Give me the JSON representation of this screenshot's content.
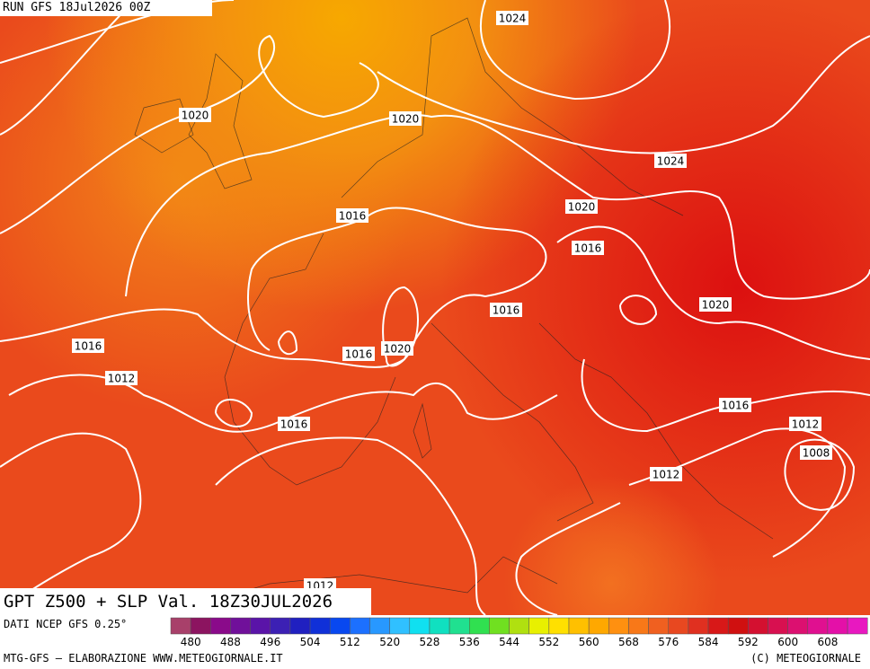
{
  "header": {
    "run": "RUN GFS 18Jul2026 00Z"
  },
  "isobar_labels": [
    "1024",
    "1020",
    "1020",
    "1024",
    "1016",
    "1020",
    "1016",
    "1016",
    "1020",
    "1016",
    "1020",
    "1016",
    "1012",
    "1016",
    "1016",
    "1012",
    "1008",
    "1012",
    "1012"
  ],
  "title": "GPT Z500 + SLP Val. 18Z30JUL2026",
  "source": "DATI NCEP GFS 0.25°",
  "colorbar": {
    "ticks": [
      480,
      488,
      496,
      504,
      512,
      520,
      528,
      536,
      544,
      552,
      560,
      568,
      576,
      584,
      592,
      600,
      608
    ]
  },
  "footer": {
    "left": "MTG-GFS — ELABORAZIONE WWW.METEOGIORNALE.IT",
    "right": "(C) METEOGIORNALE"
  }
}
